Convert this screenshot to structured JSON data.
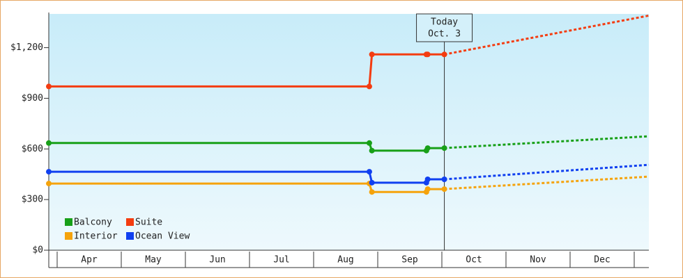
{
  "chart_data": {
    "type": "line",
    "categories": [
      "Apr",
      "May",
      "Jun",
      "Jul",
      "Aug",
      "Sep",
      "Oct",
      "Nov",
      "Dec"
    ],
    "x": [
      -0.13,
      4.87,
      4.91,
      5.76,
      5.78,
      6.04
    ],
    "forecast_x": [
      6.04,
      9.23
    ],
    "xlim": [
      -0.13,
      9.23
    ],
    "ylim": [
      0,
      1400
    ],
    "yticks": [
      {
        "value": 0,
        "label": "$0"
      },
      {
        "value": 300,
        "label": "$300"
      },
      {
        "value": 600,
        "label": "$600"
      },
      {
        "value": 900,
        "label": "$900"
      },
      {
        "value": 1200,
        "label": "$1,200"
      }
    ],
    "annotation": {
      "lines": [
        "Today",
        "Oct. 3"
      ],
      "x": 6.04
    },
    "series": [
      {
        "name": "Balcony",
        "color": "#18a018",
        "values": [
          635,
          635,
          590,
          590,
          605,
          605
        ],
        "forecast": [
          605,
          675
        ]
      },
      {
        "name": "Suite",
        "color": "#f43c10",
        "values": [
          970,
          970,
          1160,
          1160,
          1160,
          1160
        ],
        "forecast": [
          1160,
          1390
        ]
      },
      {
        "name": "Interior",
        "color": "#f5a30c",
        "values": [
          395,
          395,
          345,
          345,
          362,
          362
        ],
        "forecast": [
          362,
          436
        ]
      },
      {
        "name": "Ocean View",
        "color": "#1040f0",
        "values": [
          465,
          465,
          400,
          400,
          420,
          420
        ],
        "forecast": [
          420,
          506
        ]
      }
    ]
  }
}
